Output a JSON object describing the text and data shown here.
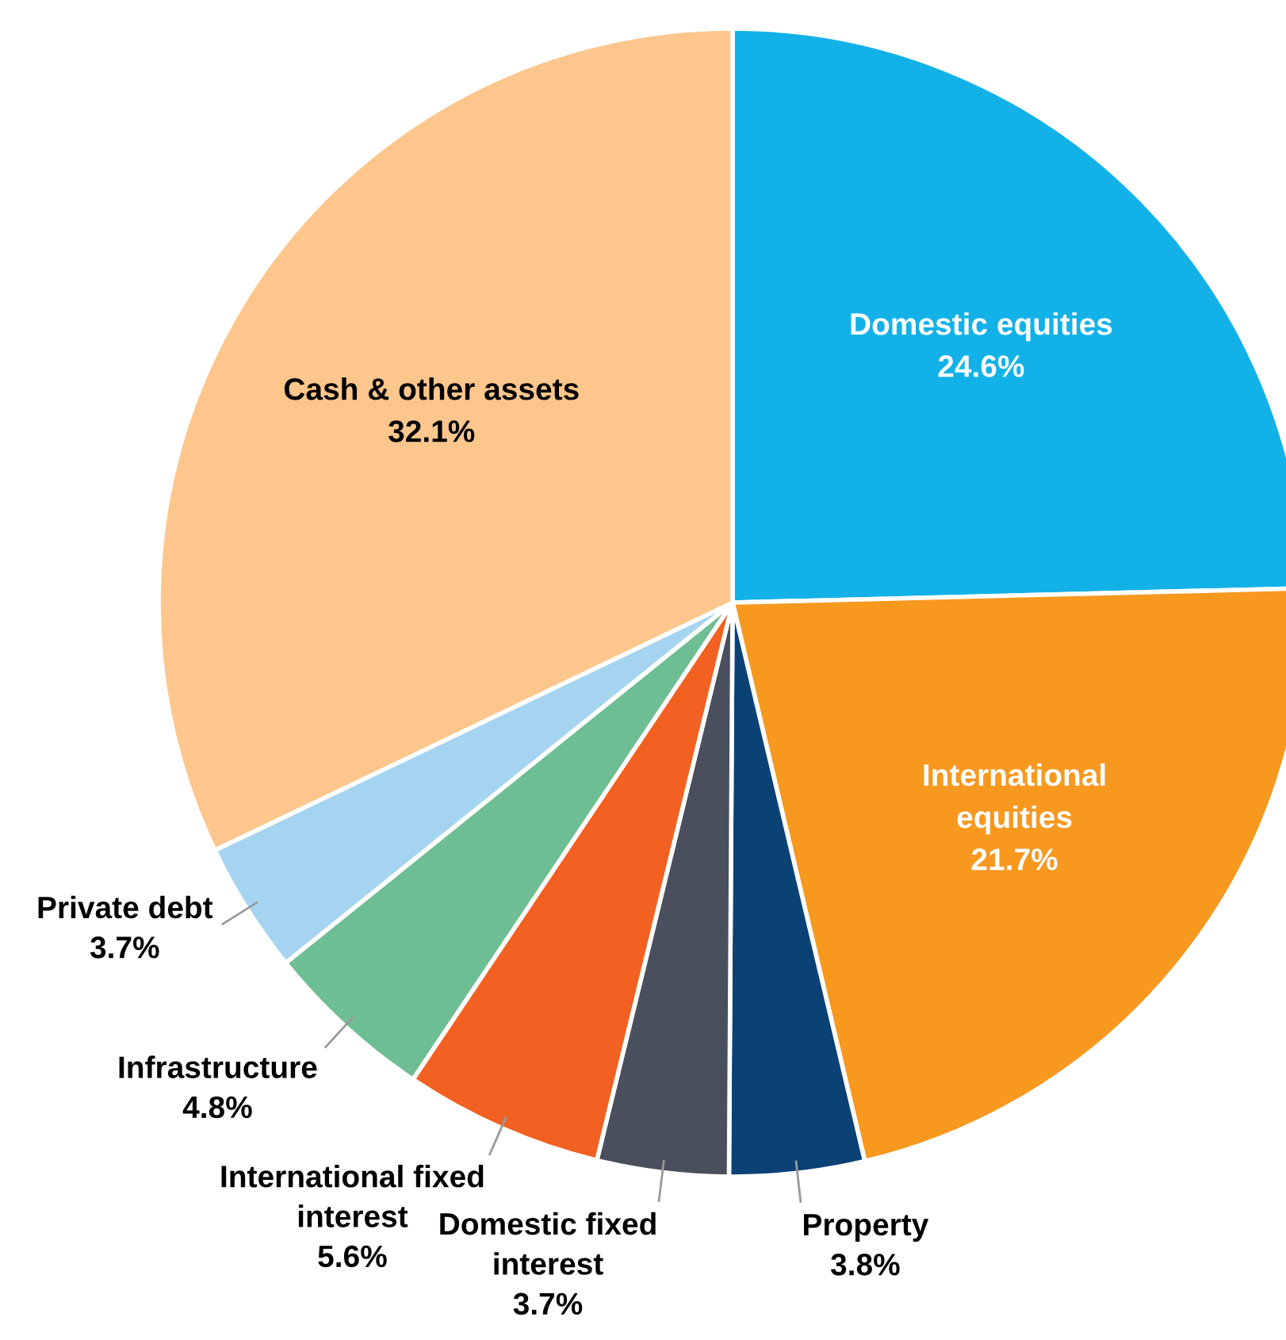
{
  "chart_data": {
    "type": "pie",
    "categories": [
      "Domestic equities",
      "International\nequities",
      "Property",
      "Domestic fixed\ninterest",
      "International fixed\ninterest",
      "Infrastructure",
      "Private debt",
      "Cash & other assets"
    ],
    "values": [
      24.6,
      21.7,
      3.8,
      3.7,
      5.6,
      4.8,
      3.7,
      32.1
    ],
    "colors": [
      "#12b2e8",
      "#f7981f",
      "#0a4276",
      "#4a4f5e",
      "#f26122",
      "#6dbe93",
      "#a5d4f0",
      "#fdc68c"
    ],
    "value_labels": [
      "24.6%",
      "21.7%",
      "3.8%",
      "3.7%",
      "5.6%",
      "4.8%",
      "3.7%",
      "32.1%"
    ]
  }
}
